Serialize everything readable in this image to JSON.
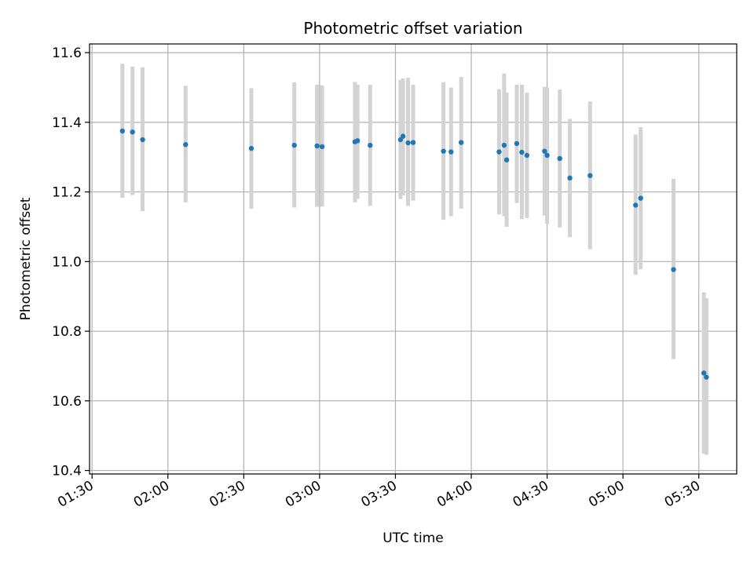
{
  "chart_data": {
    "type": "scatter",
    "title": "Photometric offset variation",
    "xlabel": "UTC time",
    "ylabel": "Photometric offset",
    "xlim": [
      "01:29",
      "05:45"
    ],
    "ylim": [
      10.39,
      11.625
    ],
    "x_ticks": [
      "01:30",
      "02:00",
      "02:30",
      "03:00",
      "03:30",
      "04:00",
      "04:30",
      "05:00",
      "05:30"
    ],
    "y_ticks": [
      "10.4",
      "10.6",
      "10.8",
      "11.0",
      "11.2",
      "11.4",
      "11.6"
    ],
    "grid": true,
    "colors": {
      "marker": "#1f77b4",
      "errorbar": "#d3d3d3",
      "grid": "#b0b0b0"
    },
    "points": [
      {
        "x": "01:42",
        "y": 11.375,
        "err_low": 11.183,
        "err_high": 11.568
      },
      {
        "x": "01:46",
        "y": 11.372,
        "err_low": 11.191,
        "err_high": 11.56
      },
      {
        "x": "01:50",
        "y": 11.35,
        "err_low": 11.145,
        "err_high": 11.558
      },
      {
        "x": "02:07",
        "y": 11.336,
        "err_low": 11.17,
        "err_high": 11.505
      },
      {
        "x": "02:33",
        "y": 11.325,
        "err_low": 11.152,
        "err_high": 11.498
      },
      {
        "x": "02:50",
        "y": 11.334,
        "err_low": 11.155,
        "err_high": 11.515
      },
      {
        "x": "02:59",
        "y": 11.332,
        "err_low": 11.157,
        "err_high": 11.508
      },
      {
        "x": "03:01",
        "y": 11.33,
        "err_low": 11.158,
        "err_high": 11.506
      },
      {
        "x": "03:14",
        "y": 11.344,
        "err_low": 11.17,
        "err_high": 11.516
      },
      {
        "x": "03:15",
        "y": 11.347,
        "err_low": 11.18,
        "err_high": 11.508
      },
      {
        "x": "03:20",
        "y": 11.334,
        "err_low": 11.16,
        "err_high": 11.508
      },
      {
        "x": "03:32",
        "y": 11.35,
        "err_low": 11.18,
        "err_high": 11.522
      },
      {
        "x": "03:33",
        "y": 11.36,
        "err_low": 11.19,
        "err_high": 11.526
      },
      {
        "x": "03:35",
        "y": 11.341,
        "err_low": 11.16,
        "err_high": 11.528
      },
      {
        "x": "03:37",
        "y": 11.342,
        "err_low": 11.175,
        "err_high": 11.508
      },
      {
        "x": "03:49",
        "y": 11.317,
        "err_low": 11.12,
        "err_high": 11.515
      },
      {
        "x": "03:52",
        "y": 11.315,
        "err_low": 11.13,
        "err_high": 11.5
      },
      {
        "x": "03:56",
        "y": 11.342,
        "err_low": 11.152,
        "err_high": 11.53
      },
      {
        "x": "04:11",
        "y": 11.315,
        "err_low": 11.135,
        "err_high": 11.495
      },
      {
        "x": "04:13",
        "y": 11.334,
        "err_low": 11.13,
        "err_high": 11.54
      },
      {
        "x": "04:14",
        "y": 11.292,
        "err_low": 11.1,
        "err_high": 11.485
      },
      {
        "x": "04:18",
        "y": 11.339,
        "err_low": 11.168,
        "err_high": 11.508
      },
      {
        "x": "04:20",
        "y": 11.314,
        "err_low": 11.122,
        "err_high": 11.508
      },
      {
        "x": "04:22",
        "y": 11.305,
        "err_low": 11.125,
        "err_high": 11.485
      },
      {
        "x": "04:29",
        "y": 11.317,
        "err_low": 11.132,
        "err_high": 11.502
      },
      {
        "x": "04:30",
        "y": 11.305,
        "err_low": 11.108,
        "err_high": 11.5
      },
      {
        "x": "04:35",
        "y": 11.296,
        "err_low": 11.098,
        "err_high": 11.494
      },
      {
        "x": "04:39",
        "y": 11.24,
        "err_low": 11.07,
        "err_high": 11.41
      },
      {
        "x": "04:47",
        "y": 11.247,
        "err_low": 11.035,
        "err_high": 11.46
      },
      {
        "x": "05:05",
        "y": 11.162,
        "err_low": 10.962,
        "err_high": 11.365
      },
      {
        "x": "05:07",
        "y": 11.182,
        "err_low": 10.978,
        "err_high": 11.386
      },
      {
        "x": "05:20",
        "y": 10.977,
        "err_low": 10.72,
        "err_high": 11.238
      },
      {
        "x": "05:32",
        "y": 10.68,
        "err_low": 10.448,
        "err_high": 10.912
      },
      {
        "x": "05:33",
        "y": 10.668,
        "err_low": 10.445,
        "err_high": 10.895
      }
    ]
  }
}
